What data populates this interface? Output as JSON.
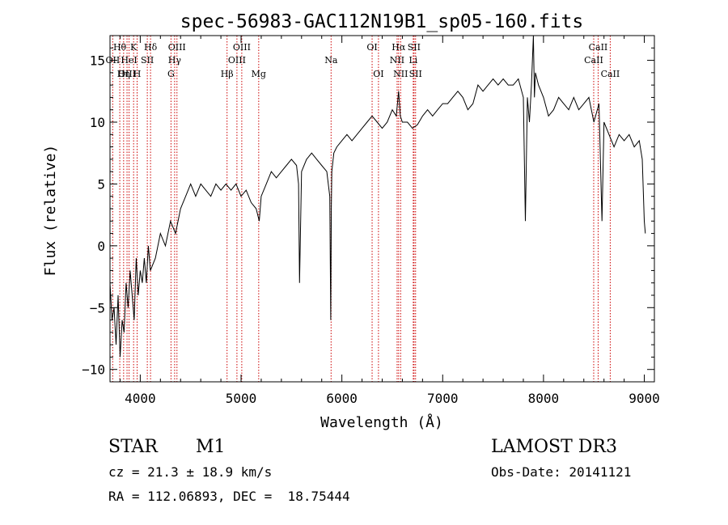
{
  "chart_data": {
    "type": "line",
    "title": "spec-56983-GAC112N19B1_sp05-160.fits",
    "xlabel": "Wavelength (Å)",
    "ylabel": "Flux (relative)",
    "xlim": [
      3700,
      9100
    ],
    "ylim": [
      -11,
      17
    ],
    "xticks": [
      4000,
      5000,
      6000,
      7000,
      8000,
      9000
    ],
    "xtick_labels": [
      "4000",
      "5000",
      "6000",
      "7000",
      "8000",
      "9000"
    ],
    "yticks": [
      -10,
      -5,
      0,
      5,
      10,
      15
    ],
    "ytick_labels": [
      "−10",
      "−5",
      "0",
      "5",
      "10",
      "15"
    ],
    "spectrum": {
      "x": [
        3700,
        3720,
        3740,
        3760,
        3780,
        3800,
        3820,
        3840,
        3860,
        3880,
        3900,
        3920,
        3940,
        3960,
        3980,
        4000,
        4020,
        4040,
        4060,
        4080,
        4100,
        4150,
        4200,
        4250,
        4300,
        4350,
        4400,
        4450,
        4500,
        4550,
        4600,
        4650,
        4700,
        4750,
        4800,
        4850,
        4900,
        4950,
        5000,
        5050,
        5100,
        5150,
        5180,
        5200,
        5250,
        5300,
        5350,
        5400,
        5450,
        5500,
        5550,
        5570,
        5580,
        5600,
        5650,
        5700,
        5750,
        5800,
        5850,
        5880,
        5890,
        5895,
        5900,
        5920,
        5950,
        6000,
        6050,
        6100,
        6150,
        6200,
        6250,
        6300,
        6350,
        6400,
        6450,
        6500,
        6540,
        6563,
        6580,
        6600,
        6650,
        6700,
        6750,
        6800,
        6850,
        6900,
        6950,
        7000,
        7050,
        7100,
        7150,
        7200,
        7250,
        7300,
        7350,
        7400,
        7450,
        7500,
        7550,
        7600,
        7650,
        7700,
        7750,
        7800,
        7820,
        7840,
        7860,
        7880,
        7900,
        7910,
        7920,
        7950,
        8000,
        8050,
        8100,
        8150,
        8200,
        8250,
        8300,
        8350,
        8400,
        8450,
        8500,
        8550,
        8580,
        8600,
        8650,
        8700,
        8750,
        8800,
        8850,
        8900,
        8950,
        8980,
        9000,
        9010
      ],
      "y": [
        -3,
        -6,
        -5,
        -8,
        -4,
        -9,
        -6,
        -7,
        -3,
        -5,
        -2,
        -4,
        -6,
        -1,
        -4,
        -2,
        -3,
        -1,
        -3,
        0,
        -2,
        -1,
        1,
        0,
        2,
        1,
        3,
        4,
        5,
        4,
        5,
        4.5,
        4,
        5,
        4.5,
        5,
        4.5,
        5,
        4,
        4.5,
        3.5,
        3,
        2,
        4,
        5,
        6,
        5.5,
        6,
        6.5,
        7,
        6.5,
        5,
        -3,
        6,
        7,
        7.5,
        7,
        6.5,
        6,
        4,
        -6,
        3,
        6,
        7.5,
        8,
        8.5,
        9,
        8.5,
        9,
        9.5,
        10,
        10.5,
        10,
        9.5,
        10,
        11,
        10.5,
        12.5,
        10.5,
        10,
        10,
        9.5,
        9.8,
        10.5,
        11,
        10.5,
        11,
        11.5,
        11.5,
        12,
        12.5,
        12,
        11,
        11.5,
        13,
        12.5,
        13,
        13.5,
        13,
        13.5,
        13,
        13,
        13.5,
        12,
        2,
        12,
        10,
        13,
        17,
        12,
        14,
        13,
        12,
        10.5,
        11,
        12,
        11.5,
        11,
        12,
        11,
        11.5,
        12,
        10,
        11.5,
        2,
        10,
        9,
        8,
        9,
        8.5,
        9,
        8,
        8.5,
        7,
        2,
        1
      ]
    },
    "line_markers": [
      {
        "name": "Hθ",
        "wavelength": 3797,
        "row": 1
      },
      {
        "name": "OII",
        "wavelength": 3727,
        "row": 2
      },
      {
        "name": "OIII",
        "wavelength": 3869,
        "row": 3
      },
      {
        "name": "HeI",
        "wavelength": 3889,
        "row": 2
      },
      {
        "name": "Hη",
        "wavelength": 3835,
        "row": 3
      },
      {
        "name": "K",
        "wavelength": 3934,
        "row": 1
      },
      {
        "name": "SII",
        "wavelength": 4070,
        "row": 2
      },
      {
        "name": "H",
        "wavelength": 3969,
        "row": 3
      },
      {
        "name": "Hδ",
        "wavelength": 4102,
        "row": 1
      },
      {
        "name": "OIII",
        "wavelength": 4364,
        "row": 1
      },
      {
        "name": "Hγ",
        "wavelength": 4341,
        "row": 2
      },
      {
        "name": "G",
        "wavelength": 4305,
        "row": 3
      },
      {
        "name": "Hβ",
        "wavelength": 4861,
        "row": 3
      },
      {
        "name": "OIII",
        "wavelength": 5007,
        "row": 1
      },
      {
        "name": "OIII",
        "wavelength": 4959,
        "row": 2
      },
      {
        "name": "Mg",
        "wavelength": 5175,
        "row": 3
      },
      {
        "name": "Na",
        "wavelength": 5893,
        "row": 2
      },
      {
        "name": "OI",
        "wavelength": 6300,
        "row": 1
      },
      {
        "name": "OI",
        "wavelength": 6363,
        "row": 3
      },
      {
        "name": "Hα",
        "wavelength": 6563,
        "row": 1
      },
      {
        "name": "NII",
        "wavelength": 6548,
        "row": 2
      },
      {
        "name": "NII",
        "wavelength": 6583,
        "row": 3
      },
      {
        "name": "SII",
        "wavelength": 6716,
        "row": 1
      },
      {
        "name": "Li",
        "wavelength": 6708,
        "row": 2
      },
      {
        "name": "SII",
        "wavelength": 6731,
        "row": 3
      },
      {
        "name": "CaII",
        "wavelength": 8542,
        "row": 1
      },
      {
        "name": "CaII",
        "wavelength": 8498,
        "row": 2
      },
      {
        "name": "CaII",
        "wavelength": 8662,
        "row": 3
      }
    ]
  },
  "info": {
    "object_class": "STAR",
    "subclass": "M1",
    "survey": "LAMOST DR3",
    "cz": "cz = 21.3 ± 18.9 km/s",
    "obs_date": "Obs-Date: 20141121",
    "coords": "RA = 112.06893, DEC =  18.75444"
  },
  "colors": {
    "marker": "#cc0000",
    "spectrum": "#000000",
    "axis": "#000000"
  }
}
